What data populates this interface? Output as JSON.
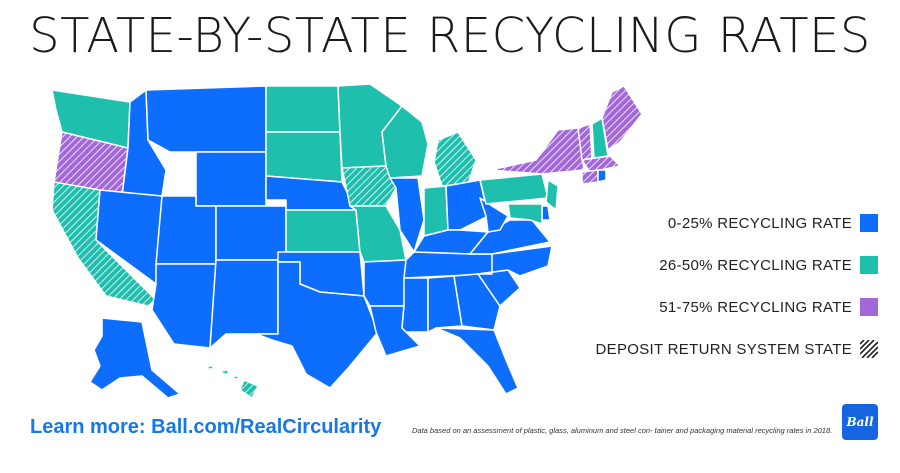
{
  "title": "STATE-BY-STATE RECYCLING RATES",
  "colors": {
    "low": "#0d6efd",
    "mid": "#1fbfad",
    "high": "#a267d8",
    "border": "#ffffff"
  },
  "legend": [
    {
      "label": "0-25% RECYCLING RATE",
      "key": "low"
    },
    {
      "label": "26-50% RECYCLING RATE",
      "key": "mid"
    },
    {
      "label": "51-75% RECYCLING RATE",
      "key": "high"
    },
    {
      "label": "DEPOSIT RETURN SYSTEM STATE",
      "key": "deposit"
    }
  ],
  "states": [
    {
      "abbr": "WA",
      "rate": "mid",
      "deposit": false
    },
    {
      "abbr": "OR",
      "rate": "high",
      "deposit": true
    },
    {
      "abbr": "CA",
      "rate": "mid",
      "deposit": true
    },
    {
      "abbr": "ID",
      "rate": "low",
      "deposit": false
    },
    {
      "abbr": "NV",
      "rate": "low",
      "deposit": false
    },
    {
      "abbr": "MT",
      "rate": "low",
      "deposit": false
    },
    {
      "abbr": "WY",
      "rate": "low",
      "deposit": false
    },
    {
      "abbr": "UT",
      "rate": "low",
      "deposit": false
    },
    {
      "abbr": "AZ",
      "rate": "low",
      "deposit": false
    },
    {
      "abbr": "CO",
      "rate": "low",
      "deposit": false
    },
    {
      "abbr": "NM",
      "rate": "low",
      "deposit": false
    },
    {
      "abbr": "ND",
      "rate": "mid",
      "deposit": false
    },
    {
      "abbr": "SD",
      "rate": "mid",
      "deposit": false
    },
    {
      "abbr": "NE",
      "rate": "low",
      "deposit": false
    },
    {
      "abbr": "KS",
      "rate": "mid",
      "deposit": false
    },
    {
      "abbr": "OK",
      "rate": "low",
      "deposit": false
    },
    {
      "abbr": "TX",
      "rate": "low",
      "deposit": false
    },
    {
      "abbr": "MN",
      "rate": "mid",
      "deposit": false
    },
    {
      "abbr": "IA",
      "rate": "mid",
      "deposit": true
    },
    {
      "abbr": "MO",
      "rate": "mid",
      "deposit": false
    },
    {
      "abbr": "AR",
      "rate": "low",
      "deposit": false
    },
    {
      "abbr": "LA",
      "rate": "low",
      "deposit": false
    },
    {
      "abbr": "WI",
      "rate": "mid",
      "deposit": false
    },
    {
      "abbr": "IL",
      "rate": "low",
      "deposit": false
    },
    {
      "abbr": "MI",
      "rate": "mid",
      "deposit": true
    },
    {
      "abbr": "IN",
      "rate": "mid",
      "deposit": false
    },
    {
      "abbr": "OH",
      "rate": "low",
      "deposit": false
    },
    {
      "abbr": "KY",
      "rate": "low",
      "deposit": false
    },
    {
      "abbr": "TN",
      "rate": "low",
      "deposit": false
    },
    {
      "abbr": "MS",
      "rate": "low",
      "deposit": false
    },
    {
      "abbr": "AL",
      "rate": "low",
      "deposit": false
    },
    {
      "abbr": "GA",
      "rate": "low",
      "deposit": false
    },
    {
      "abbr": "FL",
      "rate": "low",
      "deposit": false
    },
    {
      "abbr": "SC",
      "rate": "low",
      "deposit": false
    },
    {
      "abbr": "NC",
      "rate": "low",
      "deposit": false
    },
    {
      "abbr": "VA",
      "rate": "low",
      "deposit": false
    },
    {
      "abbr": "WV",
      "rate": "low",
      "deposit": false
    },
    {
      "abbr": "PA",
      "rate": "mid",
      "deposit": false
    },
    {
      "abbr": "NY",
      "rate": "high",
      "deposit": true
    },
    {
      "abbr": "NJ",
      "rate": "mid",
      "deposit": false
    },
    {
      "abbr": "DE",
      "rate": "low",
      "deposit": false
    },
    {
      "abbr": "MD",
      "rate": "mid",
      "deposit": false
    },
    {
      "abbr": "VT",
      "rate": "high",
      "deposit": true
    },
    {
      "abbr": "NH",
      "rate": "mid",
      "deposit": false
    },
    {
      "abbr": "ME",
      "rate": "high",
      "deposit": true
    },
    {
      "abbr": "MA",
      "rate": "high",
      "deposit": true
    },
    {
      "abbr": "CT",
      "rate": "high",
      "deposit": true
    },
    {
      "abbr": "RI",
      "rate": "low",
      "deposit": false
    },
    {
      "abbr": "AK",
      "rate": "low",
      "deposit": false
    },
    {
      "abbr": "HI",
      "rate": "mid",
      "deposit": true
    }
  ],
  "footer": {
    "learn_more": "Learn more: Ball.com/RealCircularity",
    "note": "Data based on an assessment of plastic, glass, aluminum and steel con- tainer and packaging material recycling rates in 2018.",
    "logo_text": "Ball"
  }
}
